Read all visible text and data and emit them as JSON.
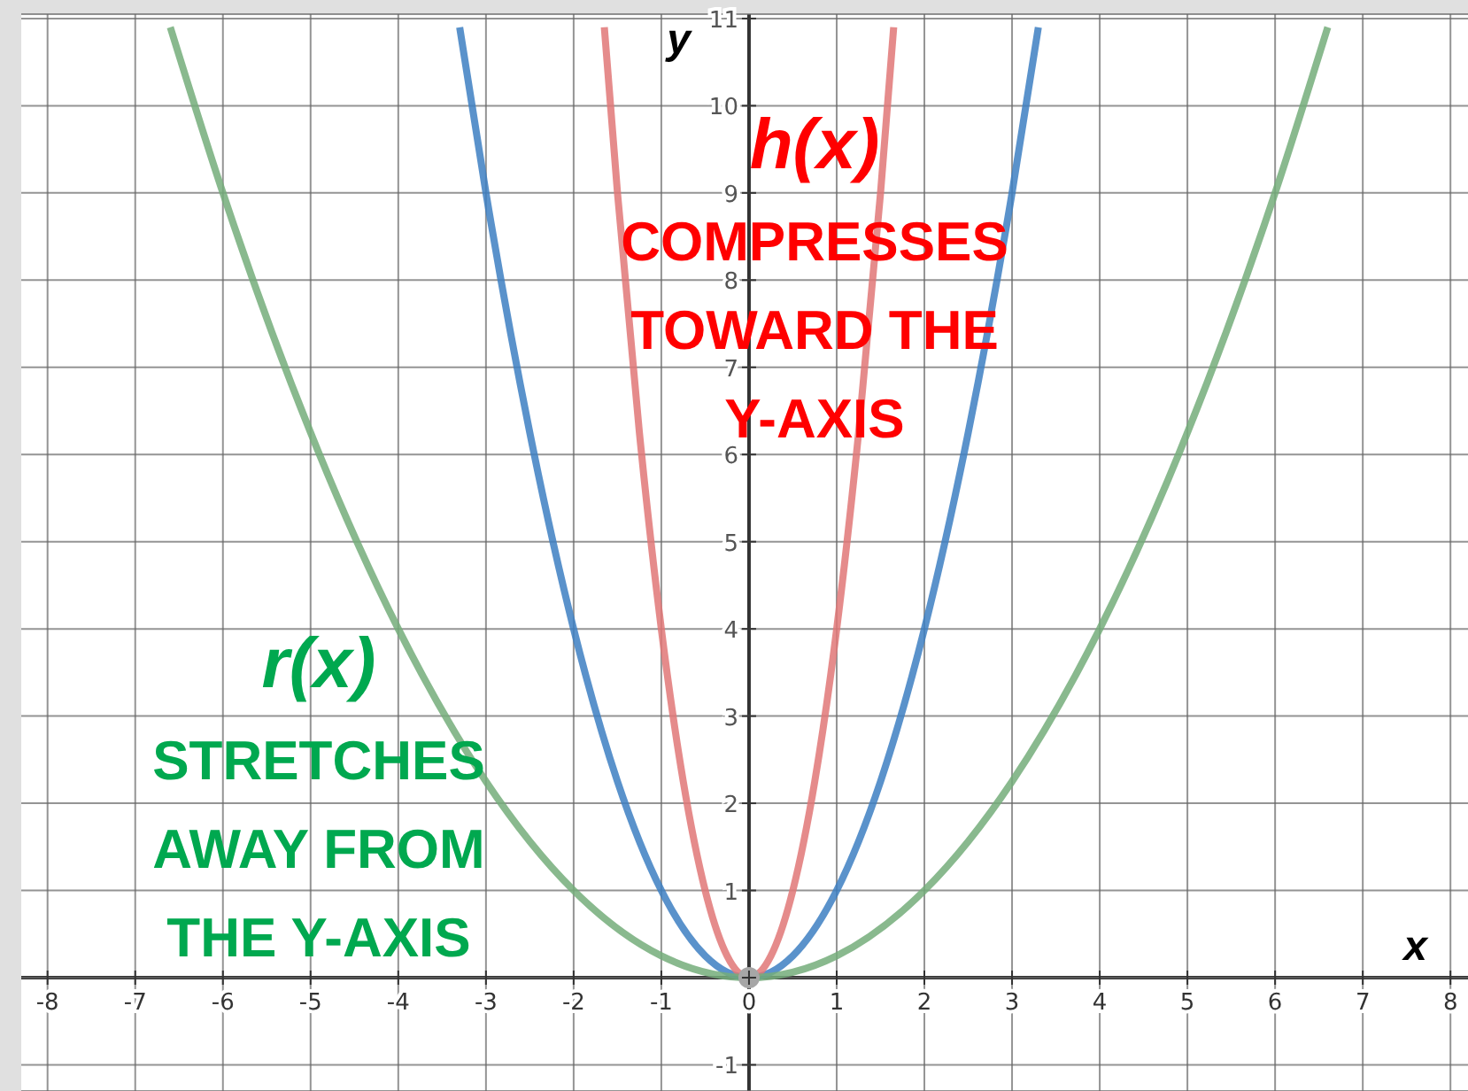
{
  "chart_data": {
    "type": "line",
    "xlabel": "x",
    "ylabel": "y",
    "xlim": [
      -8.3,
      8.2
    ],
    "ylim": [
      -1.3,
      11.05
    ],
    "xticks": [
      -8,
      -7,
      -6,
      -5,
      -4,
      -3,
      -2,
      -1,
      0,
      1,
      2,
      3,
      4,
      5,
      6,
      7,
      8
    ],
    "yticks": [
      -1,
      {
        "value": 0,
        "label": null
      },
      1,
      2,
      3,
      4,
      5,
      6,
      7,
      8,
      9,
      10,
      11
    ],
    "grid": true,
    "legend": false,
    "marker": "none",
    "line_style": "solid",
    "series": [
      {
        "color": "#3d7fc2",
        "x": [
          -3.3,
          -3,
          -2.5,
          -2,
          -1.5,
          -1,
          -0.5,
          0,
          0.5,
          1,
          1.5,
          2,
          2.5,
          3,
          3.3
        ],
        "values": [
          10.9,
          9,
          6.25,
          4,
          2.25,
          1,
          0.25,
          0,
          0.25,
          1,
          2.25,
          4,
          6.25,
          9,
          10.9
        ]
      },
      {
        "name": "h(x)",
        "color": "#e07777",
        "x": [
          -1.65,
          -1.5,
          -1.25,
          -1,
          -0.75,
          -0.5,
          -0.25,
          0,
          0.25,
          0.5,
          0.75,
          1,
          1.25,
          1.5,
          1.65
        ],
        "values": [
          10.9,
          9,
          6.25,
          4,
          2.25,
          1,
          0.25,
          0,
          0.25,
          1,
          2.25,
          4,
          6.25,
          9,
          10.9
        ]
      },
      {
        "name": "r(x)",
        "color": "#74ad7a",
        "x": [
          -6.6,
          -6,
          -5,
          -4,
          -3,
          -2,
          -1,
          0,
          1,
          2,
          3,
          4,
          5,
          6,
          6.6
        ],
        "values": [
          10.9,
          9,
          6.25,
          4,
          2.25,
          1,
          0.25,
          0,
          0.25,
          1,
          2.25,
          4,
          6.25,
          9,
          10.9
        ]
      },
      {
        "type": "scatter",
        "color": "#a6a6a6",
        "marker": "circle",
        "x": [
          0
        ],
        "values": [
          0
        ]
      }
    ],
    "annotations": [
      "COMPRESSES TOWARD THE Y-AXIS",
      "STRETCHES AWAY FROM THE Y-AXIS"
    ]
  }
}
